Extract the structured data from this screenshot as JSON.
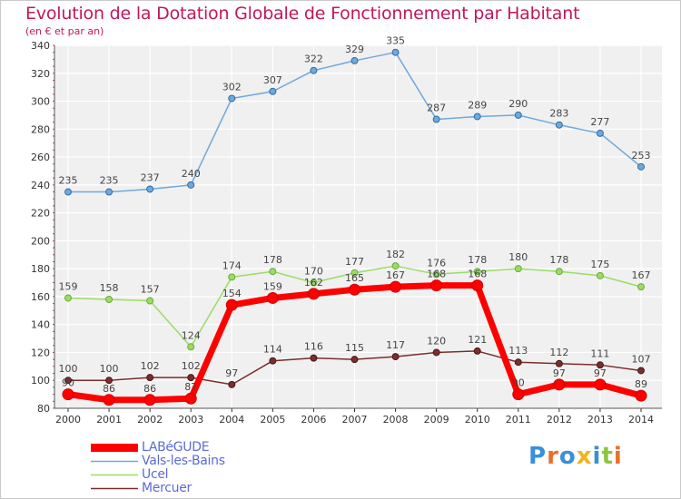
{
  "header": {
    "title": "Evolution de la Dotation Globale de Fonctionnement par Habitant",
    "subtitle": "(en € et par an)"
  },
  "brand": {
    "logo_text": "Proxiti"
  },
  "chart_data": {
    "type": "line",
    "title": "Evolution de la Dotation Globale de Fonctionnement par Habitant",
    "subtitle": "(en € et par an)",
    "xlabel": "",
    "ylabel": "",
    "categories": [
      "2000",
      "2001",
      "2002",
      "2003",
      "2004",
      "2005",
      "2006",
      "2007",
      "2008",
      "2009",
      "2010",
      "2011",
      "2012",
      "2013",
      "2014"
    ],
    "ylim": [
      80,
      340
    ],
    "yticks": [
      "80",
      "100",
      "120",
      "140",
      "160",
      "180",
      "200",
      "220",
      "240",
      "260",
      "280",
      "300",
      "320",
      "340"
    ],
    "grid": true,
    "legend_position": "bottom-left",
    "series": [
      {
        "name": "LABéGUDE",
        "color": "#ff0000",
        "values": [
          90,
          86,
          86,
          87,
          154,
          159,
          162,
          165,
          167,
          168,
          168,
          90,
          97,
          97,
          89
        ],
        "labels": [
          "90",
          "86",
          "86",
          "87",
          "154",
          "159",
          "162",
          "165",
          "167",
          "168",
          "168",
          "90",
          "97",
          "97",
          "89"
        ]
      },
      {
        "name": "Vals-les-Bains",
        "color": "#6fa8dc",
        "values": [
          235,
          235,
          237,
          240,
          302,
          307,
          322,
          329,
          335,
          287,
          289,
          290,
          283,
          277,
          253
        ],
        "labels": [
          "235",
          "235",
          "237",
          "240",
          "302",
          "307",
          "322",
          "329",
          "335",
          "287",
          "289",
          "290",
          "283",
          "277",
          "253"
        ]
      },
      {
        "name": "Ucel",
        "color": "#99dd66",
        "values": [
          159,
          158,
          157,
          124,
          174,
          178,
          170,
          177,
          182,
          176,
          178,
          180,
          178,
          175,
          167
        ],
        "labels": [
          "159",
          "158",
          "157",
          "124",
          "174",
          "178",
          "170",
          "177",
          "182",
          "176",
          "178",
          "180",
          "178",
          "175",
          "167"
        ]
      },
      {
        "name": "Mercuer",
        "color": "#7a2e2e",
        "values": [
          100,
          100,
          102,
          102,
          97,
          114,
          116,
          115,
          117,
          120,
          121,
          113,
          112,
          111,
          107
        ],
        "labels": [
          "100",
          "100",
          "102",
          "102",
          "97",
          "114",
          "116",
          "115",
          "117",
          "120",
          "121",
          "113",
          "112",
          "111",
          "107"
        ]
      }
    ]
  }
}
